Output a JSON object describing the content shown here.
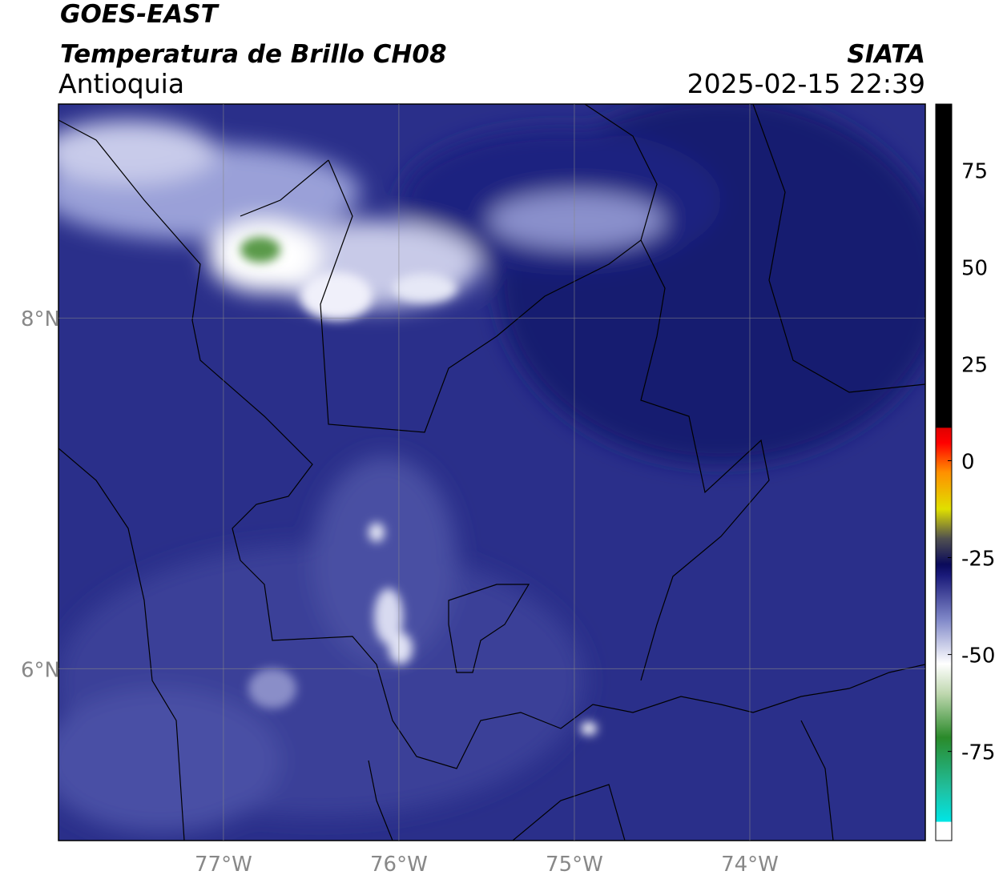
{
  "header": {
    "title": "GOES-EAST",
    "subtitle": "Temperatura de Brillo CH08",
    "region": "Antioquia",
    "source": "SIATA",
    "datetime": "2025-02-15 22:39"
  },
  "map": {
    "xlim": [
      -77.94,
      -73.0
    ],
    "ylim": [
      5.02,
      9.22
    ],
    "xticks": [
      {
        "value": -77,
        "label": "77°W"
      },
      {
        "value": -76,
        "label": "76°W"
      },
      {
        "value": -75,
        "label": "75°W"
      },
      {
        "value": -74,
        "label": "74°W"
      }
    ],
    "yticks": [
      {
        "value": 8,
        "label": "8°N"
      },
      {
        "value": 6,
        "label": "6°N"
      }
    ],
    "grid": true
  },
  "colorbar": {
    "lim": [
      -98,
      92
    ],
    "ticks": [
      75,
      50,
      25,
      0,
      -25,
      -50,
      -75
    ]
  }
}
